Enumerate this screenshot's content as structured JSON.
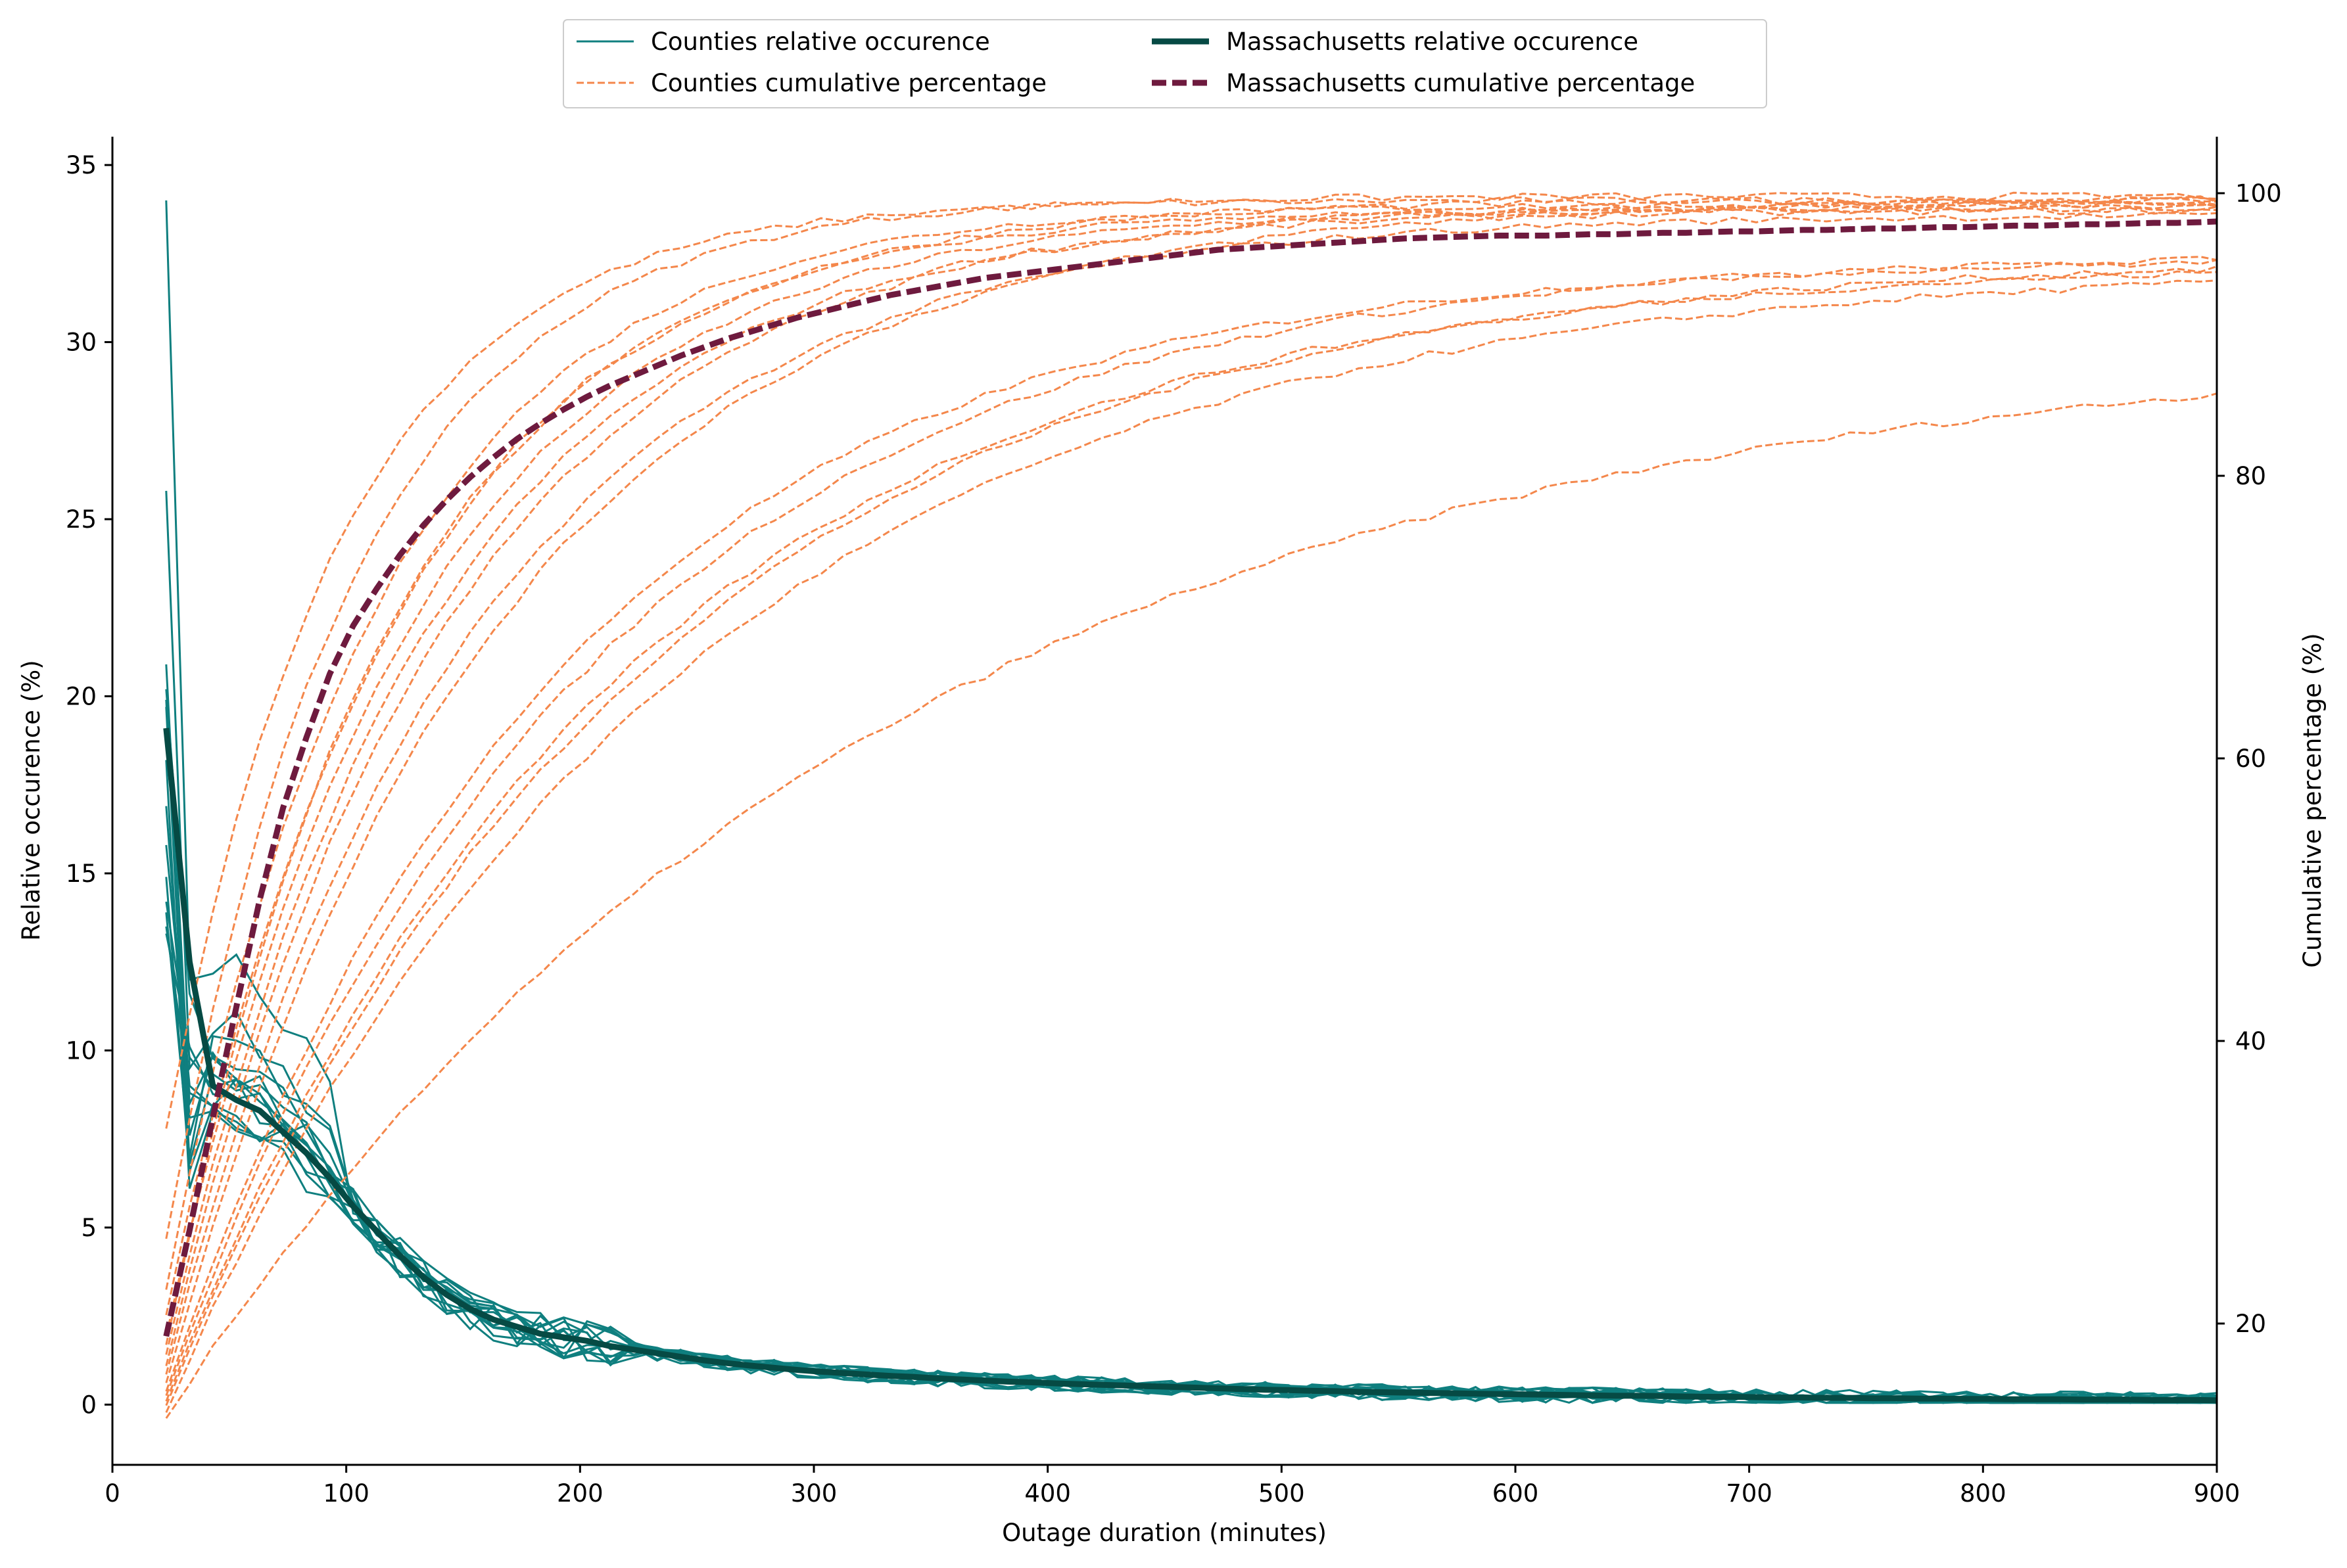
{
  "chart_data": {
    "type": "line",
    "xlabel": "Outage duration (minutes)",
    "ylabel_left": "Relative occurence (%)",
    "ylabel_right": "Cumulative percentage (%)",
    "xlim": [
      0,
      900
    ],
    "ylim_left": [
      -1.7,
      35.8
    ],
    "ylim_right": [
      10,
      104
    ],
    "x_ticks": [
      0,
      100,
      200,
      300,
      400,
      500,
      600,
      700,
      800,
      900
    ],
    "y_left_ticks": [
      0,
      5,
      10,
      15,
      20,
      25,
      30,
      35
    ],
    "y_right_ticks": [
      20,
      40,
      60,
      80,
      100
    ],
    "colors": {
      "county_relative": "#0f7f7f",
      "county_cumulative": "#f4874b",
      "ma_relative": "#064a44",
      "ma_cumulative": "#6e1a3e"
    },
    "legend": [
      {
        "label": "Counties relative occurence",
        "style": "county-relative"
      },
      {
        "label": "Counties cumulative percentage",
        "style": "county-cumulative"
      },
      {
        "label": "Massachusetts relative occurence",
        "style": "ma-relative"
      },
      {
        "label": "Massachusetts cumulative percentage",
        "style": "ma-cumulative"
      }
    ],
    "x": [
      23,
      33,
      43,
      53,
      63,
      73,
      83,
      93,
      103,
      113,
      123,
      133,
      143,
      153,
      163,
      173,
      183,
      193,
      203,
      213,
      223,
      233,
      243,
      253,
      263,
      273,
      283,
      293,
      303,
      313,
      323,
      333,
      343,
      353,
      363,
      373,
      383,
      393,
      403,
      413,
      423,
      433,
      443,
      453,
      463,
      473,
      483,
      493,
      503,
      513,
      523,
      533,
      543,
      553,
      563,
      573,
      583,
      593,
      603,
      613,
      623,
      633,
      643,
      653,
      663,
      673,
      683,
      693,
      703,
      713,
      723,
      733,
      743,
      753,
      763,
      773,
      783,
      793,
      803,
      813,
      823,
      833,
      843,
      853,
      863,
      873,
      883,
      893,
      900
    ],
    "ma_relative": [
      19.1,
      12.5,
      9.0,
      8.6,
      8.3,
      7.7,
      7.1,
      6.4,
      5.6,
      4.9,
      4.2,
      3.6,
      3.1,
      2.7,
      2.4,
      2.2,
      2.0,
      1.9,
      1.8,
      1.65,
      1.55,
      1.45,
      1.35,
      1.25,
      1.17,
      1.1,
      1.04,
      0.98,
      0.93,
      0.89,
      0.85,
      0.81,
      0.78,
      0.74,
      0.71,
      0.68,
      0.65,
      0.63,
      0.6,
      0.58,
      0.56,
      0.54,
      0.52,
      0.5,
      0.48,
      0.46,
      0.44,
      0.42,
      0.41,
      0.39,
      0.38,
      0.36,
      0.35,
      0.34,
      0.33,
      0.32,
      0.31,
      0.3,
      0.29,
      0.28,
      0.27,
      0.26,
      0.25,
      0.25,
      0.24,
      0.23,
      0.22,
      0.22,
      0.21,
      0.2,
      0.2,
      0.19,
      0.19,
      0.18,
      0.18,
      0.17,
      0.17,
      0.16,
      0.16,
      0.15,
      0.15,
      0.15,
      0.14,
      0.14,
      0.14,
      0.13,
      0.13,
      0.13,
      0.12
    ],
    "ma_cumulative": [
      19.1,
      26.6,
      34.6,
      42.4,
      50.0,
      56.5,
      61.5,
      66.0,
      69.4,
      72.0,
      74.4,
      76.5,
      78.3,
      79.9,
      81.3,
      82.6,
      83.7,
      84.7,
      85.6,
      86.4,
      87.1,
      87.8,
      88.5,
      89.1,
      89.7,
      90.2,
      90.7,
      91.2,
      91.6,
      92.0,
      92.4,
      92.8,
      93.1,
      93.4,
      93.7,
      94.0,
      94.2,
      94.4,
      94.6,
      94.8,
      95.0,
      95.2,
      95.4,
      95.6,
      95.8,
      96.0,
      96.1,
      96.2,
      96.3,
      96.4,
      96.5,
      96.6,
      96.7,
      96.8,
      96.85,
      96.9,
      96.95,
      97.0,
      97.0,
      97.0,
      97.05,
      97.1,
      97.1,
      97.15,
      97.2,
      97.2,
      97.25,
      97.3,
      97.3,
      97.35,
      97.4,
      97.4,
      97.45,
      97.5,
      97.5,
      97.55,
      97.6,
      97.6,
      97.65,
      97.7,
      97.7,
      97.75,
      97.8,
      97.8,
      97.85,
      97.9,
      97.9,
      97.95,
      98.0
    ],
    "county_relative": [
      {
        "start": 34.0,
        "y40": 12.0,
        "peak": 12.2
      },
      {
        "start": 25.8,
        "y40": 9.5,
        "peak": 10.5
      },
      {
        "start": 20.9,
        "y40": 8.5,
        "peak": 9.4
      },
      {
        "start": 20.2,
        "y40": 11.6,
        "peak": 9.0
      },
      {
        "start": 19.7,
        "y40": 6.8,
        "peak": 9.2
      },
      {
        "start": 15.8,
        "y40": 9.0,
        "peak": 8.6
      },
      {
        "start": 14.9,
        "y40": 6.6,
        "peak": 8.2
      },
      {
        "start": 13.9,
        "y40": 7.0,
        "peak": 9.8
      },
      {
        "start": 13.5,
        "y40": 8.8,
        "peak": 7.6
      },
      {
        "start": 13.3,
        "y40": 10.1,
        "peak": 8.9
      },
      {
        "start": 19.9,
        "y40": 7.6,
        "peak": 9.1
      },
      {
        "start": 16.9,
        "y40": 8.1,
        "peak": 8.3
      },
      {
        "start": 14.2,
        "y40": 9.8,
        "peak": 8.7
      },
      {
        "start": 18.2,
        "y40": 6.1,
        "peak": 7.9
      }
    ],
    "county_cumulative": [
      {
        "start": 33.8,
        "end": 99.5,
        "rate": 1.35
      },
      {
        "start": 26.0,
        "end": 99.8,
        "rate": 1.25
      },
      {
        "start": 22.4,
        "end": 99.2,
        "rate": 1.1
      },
      {
        "start": 20.6,
        "end": 99.5,
        "rate": 1.0
      },
      {
        "start": 19.1,
        "end": 99.0,
        "rate": 0.95
      },
      {
        "start": 17.8,
        "end": 98.8,
        "rate": 0.9
      },
      {
        "start": 17.0,
        "end": 99.3,
        "rate": 0.85
      },
      {
        "start": 16.4,
        "end": 98.5,
        "rate": 0.78
      },
      {
        "start": 15.2,
        "end": 95.5,
        "rate": 0.6
      },
      {
        "start": 14.9,
        "end": 95.9,
        "rate": 0.56
      },
      {
        "start": 14.5,
        "end": 95.2,
        "rate": 0.52
      },
      {
        "start": 14.2,
        "end": 95.7,
        "rate": 0.5
      },
      {
        "start": 13.7,
        "end": 95.0,
        "rate": 0.47
      },
      {
        "start": 13.3,
        "end": 90.0,
        "rate": 0.33
      },
      {
        "start": 18.5,
        "end": 98.9,
        "rate": 1.05
      },
      {
        "start": 15.8,
        "end": 99.7,
        "rate": 0.72
      }
    ]
  }
}
